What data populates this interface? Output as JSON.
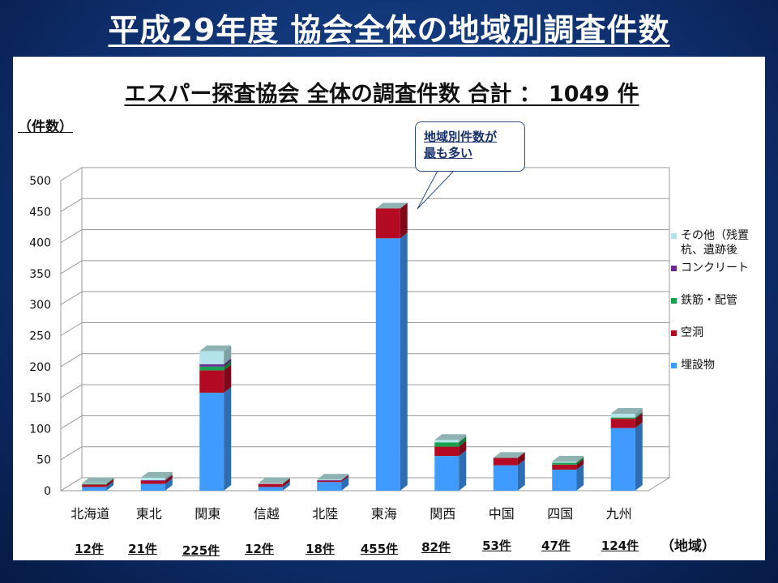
{
  "slide_title": "平成29年度 協会全体の地域別調査件数",
  "callout": {
    "line1": "地域別件数が",
    "line2": "最も多い"
  },
  "region_unit": "（地域）",
  "totals": [
    "12件",
    "21件",
    "225件",
    "12件",
    "18件",
    "455件",
    "82件",
    "53件",
    "47件",
    "124件"
  ],
  "colors": {
    "maisetsu": "#3f9bff",
    "kudo": "#b40a24",
    "tekkin": "#18a24f",
    "concrete": "#6a2c91",
    "other": "#b4e4ea"
  },
  "chart_data": {
    "type": "bar",
    "stacked": true,
    "three_d": true,
    "title": "エスパー探査協会 全体の調査件数 合計 ： 1049 件",
    "ylabel": "（件数）",
    "ylim": [
      0,
      500
    ],
    "yticks": [
      0,
      50,
      100,
      150,
      200,
      250,
      300,
      350,
      400,
      450,
      500
    ],
    "grid": true,
    "legend_position": "right",
    "categories": [
      "北海道",
      "東北",
      "関東",
      "信越",
      "北陸",
      "東海",
      "関西",
      "中国",
      "四国",
      "九州"
    ],
    "series": [
      {
        "name": "埋設物",
        "color_key": "maisetsu",
        "values": [
          6,
          11,
          158,
          6,
          14,
          407,
          56,
          41,
          34,
          101
        ]
      },
      {
        "name": "空洞",
        "color_key": "kudo",
        "values": [
          4,
          5,
          36,
          5,
          2,
          48,
          15,
          12,
          8,
          15
        ]
      },
      {
        "name": "鉄筋・配管",
        "color_key": "tekkin",
        "values": [
          1,
          0,
          6,
          0,
          0,
          0,
          7,
          0,
          3,
          2
        ]
      },
      {
        "name": "コンクリート",
        "color_key": "concrete",
        "values": [
          0,
          1,
          4,
          0,
          1,
          0,
          0,
          0,
          0,
          0
        ]
      },
      {
        "name": "その他（残置杭、遺跡後",
        "color_key": "other",
        "values": [
          1,
          4,
          21,
          1,
          1,
          0,
          4,
          0,
          2,
          6
        ]
      }
    ]
  }
}
